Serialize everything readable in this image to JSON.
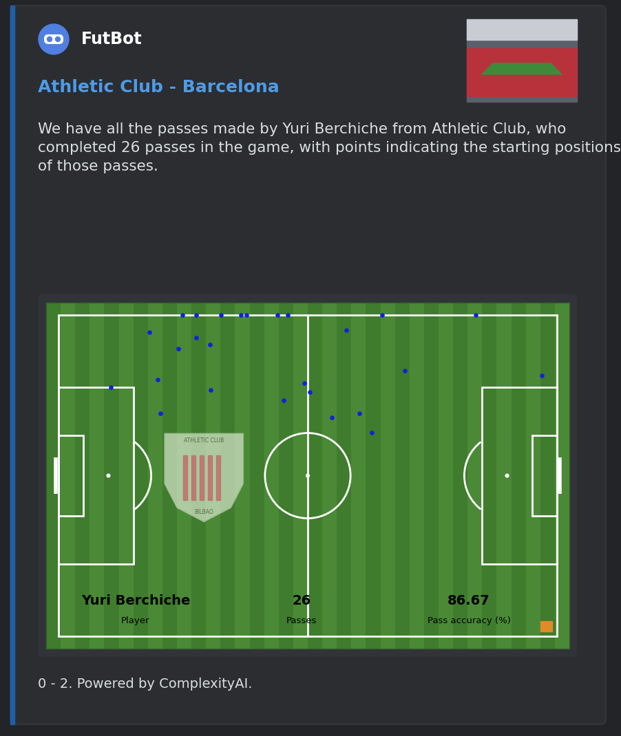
{
  "bot_name": "FutBot",
  "embed": {
    "title": "Athletic Club - Barcelona",
    "description": "We have all the passes made by Yuri Berchiche from Athletic Club, who completed 26 passes in the game, with points indicating the starting positions of those passes.",
    "footer": "0 - 2. Powered by ComplexityAI."
  },
  "chart_data": {
    "type": "scatter",
    "x": [
      29.9,
      33.2,
      39.1,
      44.0,
      45.2,
      52.7,
      55.2,
      77.9,
      100.4,
      21.8,
      33.2,
      28.8,
      36.4,
      69.3,
      23.8,
      12.6,
      36.7,
      24.6,
      59.2,
      60.5,
      54.2,
      65.8,
      72.5,
      75.5,
      83.3,
      116.3
    ],
    "values": [
      0,
      0,
      0,
      0,
      0,
      0,
      0,
      0,
      0,
      4.3,
      5.7,
      8.4,
      7.5,
      3.9,
      16.1,
      18.0,
      18.7,
      24.5,
      17.0,
      19.2,
      21.2,
      25.5,
      24.5,
      29.3,
      14.0,
      15.1
    ],
    "color": "#1020e0",
    "marker": "o",
    "xlim": [
      -3,
      123
    ],
    "ylim": [
      83,
      -3
    ],
    "tick_labels": false,
    "grid": false,
    "stats": [
      {
        "label": "Player",
        "value": "Yuri Berchiche"
      },
      {
        "label": "Passes",
        "value": 26
      },
      {
        "label": "Pass accuracy (%)",
        "value": 86.67
      }
    ],
    "crest_text": [
      "ATHLETIC CLUB",
      "BILBAO"
    ]
  }
}
